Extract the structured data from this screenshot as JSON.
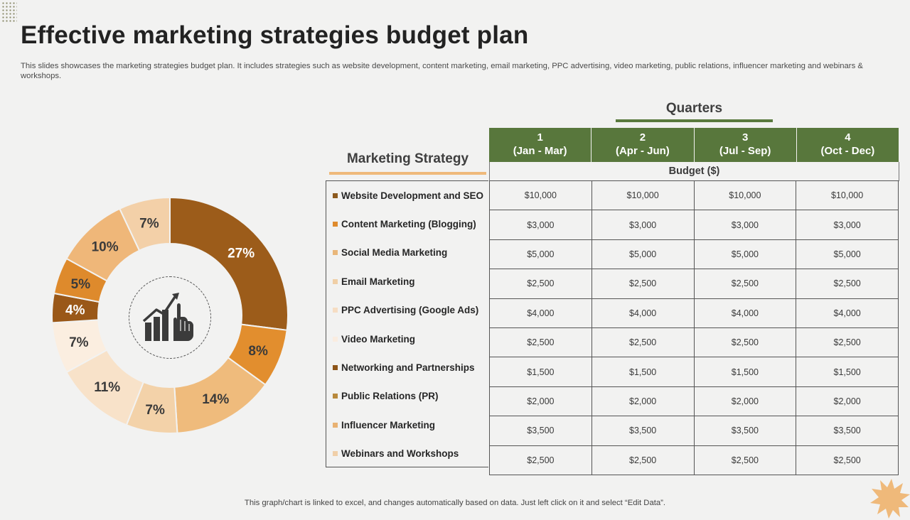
{
  "title": "Effective marketing strategies budget plan",
  "subtitle": "This slides showcases the marketing strategies budget plan. It includes strategies such as website development, content marketing, email marketing, PPC advertising, video marketing, public relations, influencer marketing and webinars & workshops.",
  "footer": "This graph/chart is linked to excel,  and changes automatically based on data. Just left click on it and select “Edit Data”.",
  "icons": {
    "center": "growth-chart-hand-icon",
    "decor_dots": "dot-grid-icon",
    "decor_star": "starburst-icon"
  },
  "colors": {
    "header_green": "#58773c",
    "strategy_underline": "#efb97a"
  },
  "chart_data": {
    "type": "pie",
    "style": "donut",
    "categories": [
      "Website Development and SEO",
      "Content Marketing (Blogging)",
      "Social Media Marketing",
      "Email Marketing",
      "PPC Advertising (Google Ads)",
      "Video Marketing",
      "Networking and Partnerships",
      "Public Relations (PR)",
      "Influencer Marketing",
      "Webinars and Workshops"
    ],
    "values": [
      27,
      8,
      14,
      7,
      11,
      7,
      4,
      5,
      10,
      7
    ],
    "labels": [
      "27%",
      "8%",
      "14%",
      "7%",
      "11%",
      "7%",
      "4%",
      "5%",
      "10%",
      "7%"
    ],
    "colors": [
      "#9c5c1a",
      "#e28e2e",
      "#efbb7c",
      "#f3d2a9",
      "#f8e2c9",
      "#fbeee0",
      "#9a5818",
      "#de8a2c",
      "#efb779",
      "#f3d0a8"
    ],
    "legend_placement": "right"
  },
  "table": {
    "quarters_title": "Quarters",
    "strategy_title": "Marketing Strategy",
    "budget_label": "Budget ($)",
    "quarters": [
      {
        "num": "1",
        "range": "(Jan - Mar)"
      },
      {
        "num": "2",
        "range": "(Apr - Jun)"
      },
      {
        "num": "3",
        "range": "(Jul - Sep)"
      },
      {
        "num": "4",
        "range": "(Oct - Dec)"
      }
    ],
    "rows": [
      {
        "strategy": "Website Development and SEO",
        "swatch": "#8c5a1e",
        "values": [
          "$10,000",
          "$10,000",
          "$10,000",
          "$10,000"
        ]
      },
      {
        "strategy": "Content Marketing (Blogging)",
        "swatch": "#df8b2e",
        "values": [
          "$3,000",
          "$3,000",
          "$3,000",
          "$3,000"
        ]
      },
      {
        "strategy": "Social Media Marketing",
        "swatch": "#e9b77a",
        "values": [
          "$5,000",
          "$5,000",
          "$5,000",
          "$5,000"
        ]
      },
      {
        "strategy": "Email Marketing",
        "swatch": "#f0cfa6",
        "values": [
          "$2,500",
          "$2,500",
          "$2,500",
          "$2,500"
        ]
      },
      {
        "strategy": "PPC Advertising (Google Ads)",
        "swatch": "#f6ddc3",
        "values": [
          "$4,000",
          "$4,000",
          "$4,000",
          "$4,000"
        ]
      },
      {
        "strategy": "Video Marketing",
        "swatch": "#faece0",
        "values": [
          "$2,500",
          "$2,500",
          "$2,500",
          "$2,500"
        ]
      },
      {
        "strategy": "Networking and Partnerships",
        "swatch": "#8c5418",
        "values": [
          "$1,500",
          "$1,500",
          "$1,500",
          "$1,500"
        ]
      },
      {
        "strategy": "Public Relations (PR)",
        "swatch": "#b8893c",
        "values": [
          "$2,000",
          "$2,000",
          "$2,000",
          "$2,000"
        ]
      },
      {
        "strategy": "Influencer Marketing",
        "swatch": "#e8b273",
        "values": [
          "$3,500",
          "$3,500",
          "$3,500",
          "$3,500"
        ]
      },
      {
        "strategy": "Webinars and Workshops",
        "swatch": "#f0cfa8",
        "values": [
          "$2,500",
          "$2,500",
          "$2,500",
          "$2,500"
        ]
      }
    ]
  }
}
